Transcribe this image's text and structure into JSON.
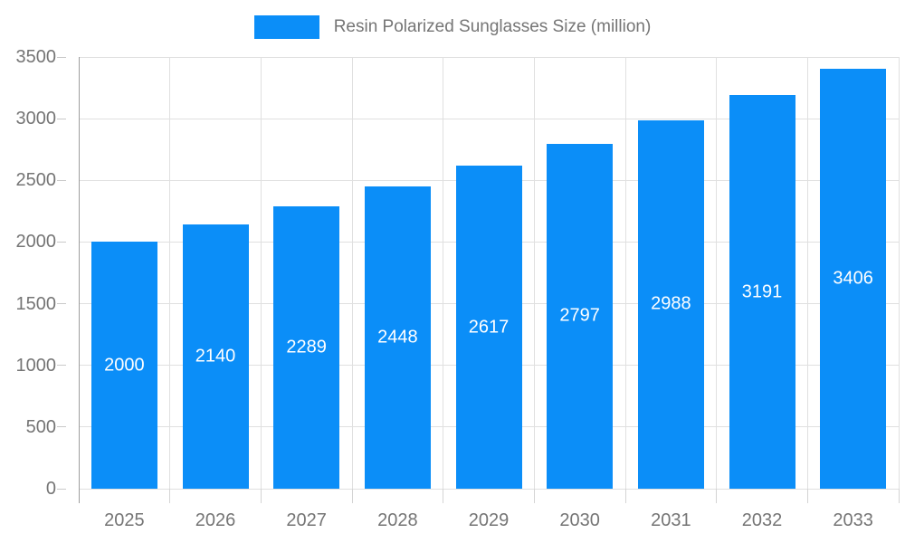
{
  "chart_data": {
    "type": "bar",
    "title": "Resin Polarized Sunglasses Size (million)",
    "categories": [
      "2025",
      "2026",
      "2027",
      "2028",
      "2029",
      "2030",
      "2031",
      "2032",
      "2033"
    ],
    "values": [
      2000,
      2140,
      2289,
      2448,
      2617,
      2797,
      2988,
      3191,
      3406
    ],
    "xlabel": "",
    "ylabel": "",
    "ylim": [
      0,
      3500
    ],
    "ytick_step": 500,
    "ytick_labels": [
      "0",
      "500",
      "1000",
      "1500",
      "2000",
      "2500",
      "3000",
      "3500"
    ],
    "grid": true,
    "legend_position": "top",
    "bar_color": "#0b8ef8",
    "value_label_color": "#ffffff",
    "axis_text_color": "#757575",
    "gridline_color": "#e0e0e0",
    "axis_line_color": "#9e9e9e"
  }
}
